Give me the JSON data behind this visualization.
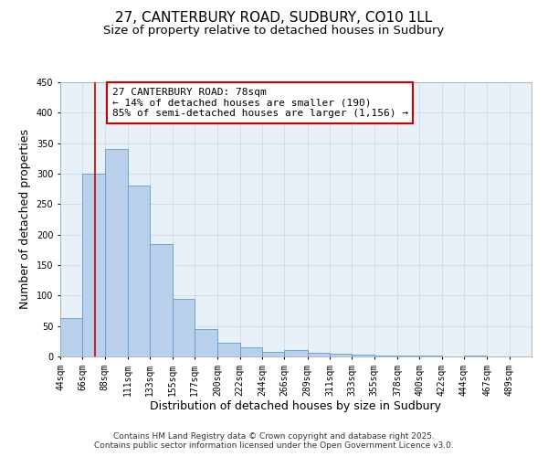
{
  "title": "27, CANTERBURY ROAD, SUDBURY, CO10 1LL",
  "subtitle": "Size of property relative to detached houses in Sudbury",
  "xlabel": "Distribution of detached houses by size in Sudbury",
  "ylabel": "Number of detached properties",
  "bar_left_edges": [
    44,
    66,
    88,
    111,
    133,
    155,
    177,
    200,
    222,
    244,
    266,
    289,
    311,
    333,
    355,
    378,
    400,
    422,
    444,
    467
  ],
  "bar_heights": [
    63,
    300,
    340,
    280,
    185,
    95,
    45,
    22,
    15,
    7,
    11,
    6,
    5,
    3,
    2,
    1,
    1,
    0,
    1
  ],
  "bar_widths": [
    22,
    22,
    23,
    22,
    22,
    22,
    23,
    22,
    22,
    22,
    23,
    22,
    22,
    22,
    23,
    22,
    22,
    22,
    23
  ],
  "tick_labels": [
    "44sqm",
    "66sqm",
    "88sqm",
    "111sqm",
    "133sqm",
    "155sqm",
    "177sqm",
    "200sqm",
    "222sqm",
    "244sqm",
    "266sqm",
    "289sqm",
    "311sqm",
    "333sqm",
    "355sqm",
    "378sqm",
    "400sqm",
    "422sqm",
    "444sqm",
    "467sqm",
    "489sqm"
  ],
  "tick_positions": [
    44,
    66,
    88,
    111,
    133,
    155,
    177,
    200,
    222,
    244,
    266,
    289,
    311,
    333,
    355,
    378,
    400,
    422,
    444,
    467,
    489
  ],
  "ylim": [
    0,
    450
  ],
  "yticks": [
    0,
    50,
    100,
    150,
    200,
    250,
    300,
    350,
    400,
    450
  ],
  "bar_color": "#b8d0ea",
  "bar_edge_color": "#5b9bd5",
  "grid_color": "#c8d8e8",
  "background_color": "#e8f0f8",
  "property_line_x": 78,
  "property_line_color": "#cc0000",
  "annotation_title": "27 CANTERBURY ROAD: 78sqm",
  "annotation_line1": "← 14% of detached houses are smaller (190)",
  "annotation_line2": "85% of semi-detached houses are larger (1,156) →",
  "annotation_box_color": "#cc0000",
  "footer1": "Contains HM Land Registry data © Crown copyright and database right 2025.",
  "footer2": "Contains public sector information licensed under the Open Government Licence v3.0.",
  "title_fontsize": 11,
  "subtitle_fontsize": 9.5,
  "axis_label_fontsize": 9,
  "tick_fontsize": 7,
  "annotation_fontsize": 8,
  "footer_fontsize": 6.5
}
